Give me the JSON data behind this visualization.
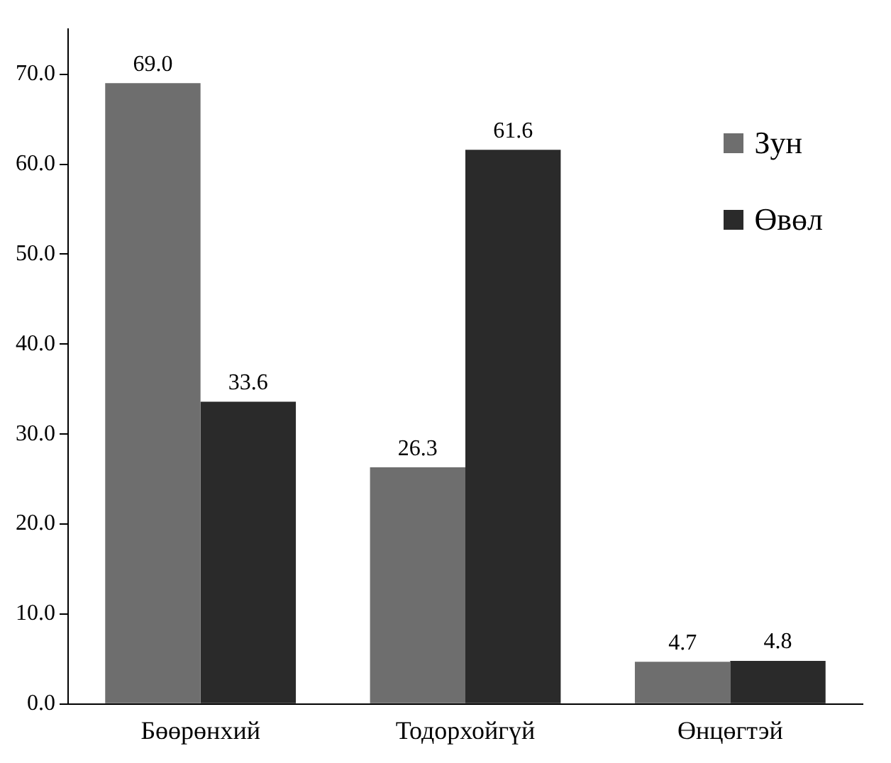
{
  "chart_data": {
    "type": "bar",
    "categories": [
      "Бөөрөнхий",
      "Тодорхойгүй",
      "Өнцөгтэй"
    ],
    "series": [
      {
        "name": "Зун",
        "color": "#6e6e6e",
        "values": [
          69.0,
          26.3,
          4.7
        ],
        "value_labels": [
          "69.0",
          "26.3",
          "4.7"
        ]
      },
      {
        "name": "Өвөл",
        "color": "#2a2a2a",
        "values": [
          33.6,
          61.6,
          4.8
        ],
        "value_labels": [
          "33.6",
          "61.6",
          "4.8"
        ]
      }
    ],
    "ylim": [
      0,
      75
    ],
    "yticks": [
      {
        "value": 0,
        "label": "0.0"
      },
      {
        "value": 10,
        "label": "10.0"
      },
      {
        "value": 20,
        "label": "20.0"
      },
      {
        "value": 30,
        "label": "30.0"
      },
      {
        "value": 40,
        "label": "40.0"
      },
      {
        "value": 50,
        "label": "50.0"
      },
      {
        "value": 60,
        "label": "60.0"
      },
      {
        "value": 70,
        "label": "70.0"
      }
    ],
    "grid": false,
    "legend": "top right"
  }
}
